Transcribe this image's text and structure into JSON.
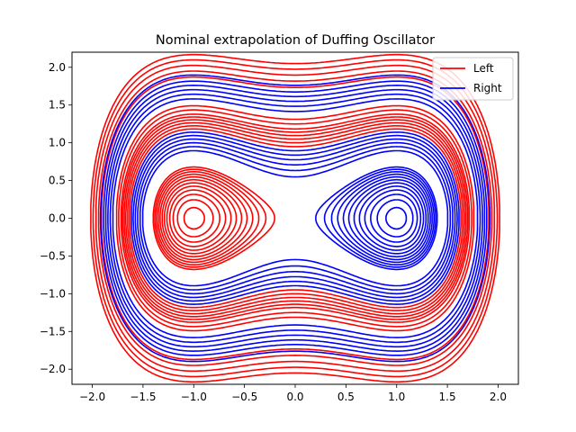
{
  "chart_data": {
    "type": "line",
    "title": "Nominal extrapolation of Duffing Oscillator",
    "xlabel": "",
    "ylabel": "",
    "xlim": [
      -2.2,
      2.2
    ],
    "ylim": [
      -2.2,
      2.2
    ],
    "xticks": [
      -2.0,
      -1.5,
      -1.0,
      -0.5,
      0.0,
      0.5,
      1.0,
      1.5,
      2.0
    ],
    "xtick_labels": [
      "−2.0",
      "−1.5",
      "−1.0",
      "−0.5",
      "0.0",
      "0.5",
      "1.0",
      "1.5",
      "2.0"
    ],
    "yticks": [
      -2.0,
      -1.5,
      -1.0,
      -0.5,
      0.0,
      0.5,
      1.0,
      1.5,
      2.0
    ],
    "ytick_labels": [
      "−2.0",
      "−1.5",
      "−1.0",
      "−0.5",
      "0.0",
      "0.5",
      "1.0",
      "1.5",
      "2.0"
    ],
    "grid": false,
    "legend_position": "top-right",
    "series": [
      {
        "name": "Left",
        "color": "#ff0000",
        "description": "trajectories of the Duffing oscillator converging to the left well (x≈-1)",
        "energy_levels": [
          -0.24,
          -0.22,
          -0.2,
          -0.18,
          -0.16,
          -0.14,
          -0.12,
          -0.1,
          -0.08,
          -0.06,
          -0.04,
          -0.02,
          0.45,
          0.5,
          0.55,
          0.6,
          0.65,
          0.7,
          0.78,
          0.86,
          1.5,
          1.65,
          1.8,
          1.95,
          2.1
        ]
      },
      {
        "name": "Right",
        "color": "#0000ff",
        "description": "trajectories of the Duffing oscillator converging to the right well (x≈1)",
        "energy_levels": [
          -0.24,
          -0.22,
          -0.2,
          -0.18,
          -0.16,
          -0.14,
          -0.12,
          -0.1,
          -0.08,
          -0.06,
          -0.04,
          -0.02,
          0.15,
          0.2,
          0.25,
          0.3,
          0.35,
          0.4,
          1.0,
          1.1,
          1.2,
          1.3,
          1.4,
          1.55
        ]
      }
    ]
  }
}
